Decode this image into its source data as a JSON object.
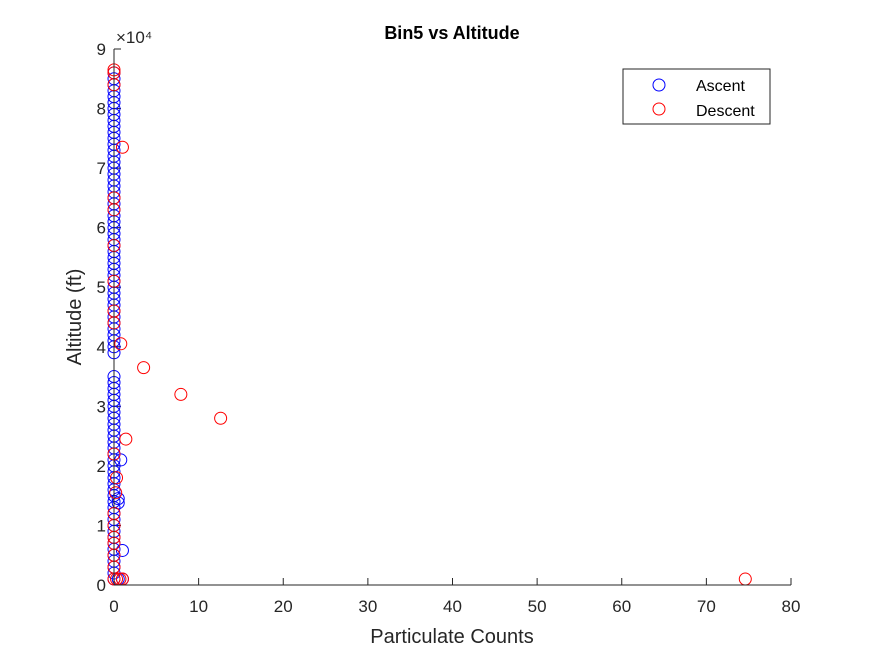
{
  "chart_data": {
    "type": "scatter",
    "title": "Bin5 vs Altitude",
    "xlabel": "Particulate Counts",
    "ylabel": "Altitude (ft)",
    "y_exponent_label": "×10⁴",
    "xlim": [
      0,
      80
    ],
    "ylim": [
      0,
      90000
    ],
    "xticks": [
      0,
      10,
      20,
      30,
      40,
      50,
      60,
      70,
      80
    ],
    "yticks": [
      0,
      10000,
      20000,
      30000,
      40000,
      50000,
      60000,
      70000,
      80000,
      90000
    ],
    "ytick_labels": [
      "0",
      "1",
      "2",
      "3",
      "4",
      "5",
      "6",
      "7",
      "8",
      "9"
    ],
    "legend_position": "top-right",
    "series": [
      {
        "name": "Ascent",
        "color": "#0000ff",
        "points": [
          [
            0,
            1000
          ],
          [
            0,
            2000
          ],
          [
            0,
            3000
          ],
          [
            0,
            4000
          ],
          [
            0,
            5000
          ],
          [
            0,
            6000
          ],
          [
            0,
            7000
          ],
          [
            0,
            8000
          ],
          [
            0,
            9000
          ],
          [
            0,
            10000
          ],
          [
            0,
            11000
          ],
          [
            0,
            12000
          ],
          [
            0,
            13000
          ],
          [
            0,
            14000
          ],
          [
            0,
            15000
          ],
          [
            0,
            16000
          ],
          [
            0,
            17000
          ],
          [
            0,
            18000
          ],
          [
            0,
            19000
          ],
          [
            0,
            20000
          ],
          [
            0,
            21000
          ],
          [
            0,
            22000
          ],
          [
            0,
            23000
          ],
          [
            0,
            24000
          ],
          [
            0,
            25000
          ],
          [
            0,
            26000
          ],
          [
            0,
            27000
          ],
          [
            0,
            28000
          ],
          [
            0,
            29000
          ],
          [
            0,
            30000
          ],
          [
            0,
            31000
          ],
          [
            0,
            32000
          ],
          [
            0,
            33000
          ],
          [
            0,
            34000
          ],
          [
            0,
            35000
          ],
          [
            0,
            39000
          ],
          [
            0,
            40000
          ],
          [
            0,
            41000
          ],
          [
            0,
            42000
          ],
          [
            0,
            43000
          ],
          [
            0,
            44000
          ],
          [
            0,
            45000
          ],
          [
            0,
            46000
          ],
          [
            0,
            47000
          ],
          [
            0,
            48000
          ],
          [
            0,
            49000
          ],
          [
            0,
            50000
          ],
          [
            0,
            51000
          ],
          [
            0,
            52000
          ],
          [
            0,
            53000
          ],
          [
            0,
            54000
          ],
          [
            0,
            55000
          ],
          [
            0,
            56000
          ],
          [
            0,
            57000
          ],
          [
            0,
            58000
          ],
          [
            0,
            59000
          ],
          [
            0,
            60000
          ],
          [
            0,
            61000
          ],
          [
            0,
            62000
          ],
          [
            0,
            63000
          ],
          [
            0,
            64000
          ],
          [
            0,
            65000
          ],
          [
            0,
            66000
          ],
          [
            0,
            67000
          ],
          [
            0,
            68000
          ],
          [
            0,
            69000
          ],
          [
            0,
            70000
          ],
          [
            0,
            71000
          ],
          [
            0,
            72000
          ],
          [
            0,
            73000
          ],
          [
            0,
            74000
          ],
          [
            0,
            75000
          ],
          [
            0,
            76000
          ],
          [
            0,
            77000
          ],
          [
            0,
            78000
          ],
          [
            0,
            79000
          ],
          [
            0,
            80000
          ],
          [
            0,
            81000
          ],
          [
            0,
            82000
          ],
          [
            0,
            83000
          ],
          [
            0,
            84000
          ],
          [
            0,
            85000
          ],
          [
            0,
            86000
          ],
          [
            0.5,
            14500
          ],
          [
            0.5,
            13800
          ],
          [
            0.8,
            21000
          ],
          [
            1,
            5800
          ],
          [
            0.5,
            1000
          ],
          [
            1,
            1000
          ]
        ]
      },
      {
        "name": "Descent",
        "color": "#ff0000",
        "points": [
          [
            74.6,
            1000
          ],
          [
            12.6,
            28000
          ],
          [
            7.9,
            32000
          ],
          [
            3.5,
            36500
          ],
          [
            1.4,
            24500
          ],
          [
            1,
            73500
          ],
          [
            0.8,
            40500
          ],
          [
            0.3,
            18000
          ],
          [
            0.2,
            15500
          ],
          [
            0,
            22000
          ],
          [
            0,
            12000
          ],
          [
            0,
            10000
          ],
          [
            0,
            8000
          ],
          [
            0,
            7000
          ],
          [
            0,
            5000
          ],
          [
            0,
            3000
          ],
          [
            0,
            1000
          ],
          [
            0.3,
            1000
          ],
          [
            0.7,
            1000
          ],
          [
            1,
            1000
          ],
          [
            0,
            44000
          ],
          [
            0,
            46000
          ],
          [
            0,
            51000
          ],
          [
            0,
            57000
          ],
          [
            0,
            63000
          ],
          [
            0,
            65000
          ],
          [
            0,
            84000
          ],
          [
            0,
            86000
          ],
          [
            0,
            86500
          ]
        ]
      }
    ]
  }
}
